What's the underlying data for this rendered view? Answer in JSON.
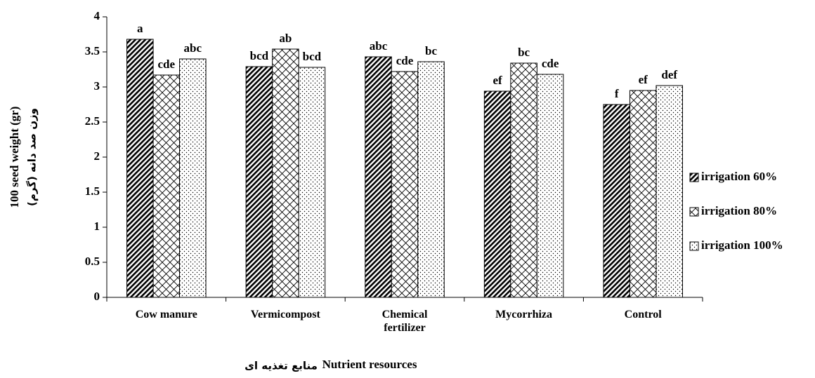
{
  "chart_data": {
    "type": "bar",
    "y_axis_label": "100 seed weight (gr)",
    "y_axis_label_fa": "(وزن صد دانه (گرم",
    "x_axis_label": "Nutrient resources",
    "x_axis_label_fa": "منابع تغذیه ای",
    "categories": [
      "Cow manure",
      "Vermicompost",
      "Chemical fertilizer",
      "Mycorrhiza",
      "Control"
    ],
    "series": [
      {
        "name": "irrigation 60%",
        "color": "#000000",
        "pattern": "dense-diagonal",
        "values": [
          3.68,
          3.29,
          3.43,
          2.94,
          2.75
        ],
        "significance_letters": [
          "a",
          "bcd",
          "abc",
          "ef",
          "f"
        ]
      },
      {
        "name": "irrigation 80%",
        "color": "#000000",
        "pattern": "diagonal-cross",
        "values": [
          3.17,
          3.54,
          3.22,
          3.34,
          2.95
        ],
        "significance_letters": [
          "cde",
          "ab",
          "cde",
          "bc",
          "ef"
        ]
      },
      {
        "name": "irrigation 100%",
        "color": "#000000",
        "pattern": "dots",
        "values": [
          3.4,
          3.28,
          3.36,
          3.18,
          3.02
        ],
        "significance_letters": [
          "abc",
          "bcd",
          "bc",
          "cde",
          "def"
        ]
      }
    ],
    "ylim": [
      0,
      4
    ],
    "yticks": [
      0,
      0.5,
      1,
      1.5,
      2,
      2.5,
      3,
      3.5,
      4
    ],
    "legend": "right"
  }
}
